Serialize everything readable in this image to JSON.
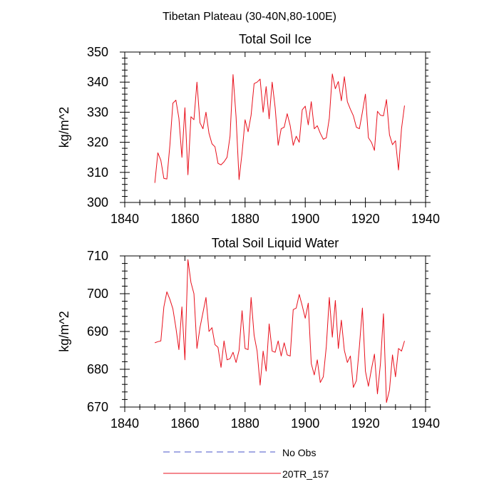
{
  "figure_title": "Tibetan Plateau (30-40N,80-100E)",
  "legend": {
    "entries": [
      {
        "label": "No Obs",
        "color": "#4a55c8",
        "style": "dashed"
      },
      {
        "label": "20TR_157",
        "color": "#e8101c",
        "style": "solid"
      }
    ]
  },
  "chart_data": [
    {
      "type": "line",
      "title": "Total Soil Ice",
      "xlabel": "",
      "ylabel": "kg/m^2",
      "xlim": [
        1840,
        1940
      ],
      "ylim": [
        300,
        350
      ],
      "xticks": [
        1840,
        1860,
        1880,
        1900,
        1920,
        1940
      ],
      "yticks": [
        300,
        310,
        320,
        330,
        340,
        350
      ],
      "grid": false,
      "series": [
        {
          "name": "20TR_157",
          "color": "#e8101c",
          "x": [
            1850,
            1851,
            1852,
            1853,
            1854,
            1855,
            1856,
            1857,
            1858,
            1859,
            1860,
            1861,
            1862,
            1863,
            1864,
            1865,
            1866,
            1867,
            1868,
            1869,
            1870,
            1871,
            1872,
            1873,
            1874,
            1875,
            1876,
            1877,
            1878,
            1879,
            1880,
            1881,
            1882,
            1883,
            1884,
            1885,
            1886,
            1887,
            1888,
            1889,
            1890,
            1891,
            1892,
            1893,
            1894,
            1895,
            1896,
            1897,
            1898,
            1899,
            1900,
            1901,
            1902,
            1903,
            1904,
            1905,
            1906,
            1907,
            1908,
            1909,
            1910,
            1911,
            1912,
            1913,
            1914,
            1915,
            1916,
            1917,
            1918,
            1919,
            1920,
            1921,
            1922,
            1923,
            1924,
            1925,
            1926,
            1927,
            1928,
            1929,
            1930,
            1931,
            1932,
            1933
          ],
          "values": [
            306.5,
            316.5,
            314,
            308,
            307.8,
            319,
            333,
            334,
            328,
            315,
            331.5,
            309.2,
            328.5,
            327.5,
            340,
            326.5,
            324.5,
            330,
            323,
            319.5,
            318.5,
            313,
            312.5,
            313.5,
            315,
            322,
            342.5,
            328.5,
            307.6,
            316.5,
            327.5,
            323.5,
            329,
            339.5,
            340,
            341,
            330,
            338.5,
            327.8,
            340,
            331.5,
            319,
            324.5,
            325,
            329.5,
            325.5,
            319,
            322,
            320,
            330.8,
            332,
            325.8,
            333.5,
            324.5,
            325.5,
            323,
            321,
            321.5,
            328,
            342.7,
            337.8,
            340.2,
            333.8,
            341.8,
            333.5,
            331,
            328.8,
            325,
            324.5,
            330,
            336,
            321.5,
            320,
            317.3,
            330.3,
            329,
            328.8,
            334.2,
            322.5,
            319.2,
            320.5,
            310.8,
            324.5,
            332.2
          ]
        }
      ]
    },
    {
      "type": "line",
      "title": "Total Soil Liquid Water",
      "xlabel": "",
      "ylabel": "kg/m^2",
      "xlim": [
        1840,
        1940
      ],
      "ylim": [
        670,
        710
      ],
      "xticks": [
        1840,
        1860,
        1880,
        1900,
        1920,
        1940
      ],
      "yticks": [
        670,
        680,
        690,
        700,
        710
      ],
      "grid": false,
      "series": [
        {
          "name": "20TR_157",
          "color": "#e8101c",
          "x": [
            1850,
            1851,
            1852,
            1853,
            1854,
            1855,
            1856,
            1857,
            1858,
            1859,
            1860,
            1861,
            1862,
            1863,
            1864,
            1865,
            1866,
            1867,
            1868,
            1869,
            1870,
            1871,
            1872,
            1873,
            1874,
            1875,
            1876,
            1877,
            1878,
            1879,
            1880,
            1881,
            1882,
            1883,
            1884,
            1885,
            1886,
            1887,
            1888,
            1889,
            1890,
            1891,
            1892,
            1893,
            1894,
            1895,
            1896,
            1897,
            1898,
            1899,
            1900,
            1901,
            1902,
            1903,
            1904,
            1905,
            1906,
            1907,
            1908,
            1909,
            1910,
            1911,
            1912,
            1913,
            1914,
            1915,
            1916,
            1917,
            1918,
            1919,
            1920,
            1921,
            1922,
            1923,
            1924,
            1925,
            1926,
            1927,
            1928,
            1929,
            1930,
            1931,
            1932,
            1933
          ],
          "values": [
            687,
            687.3,
            687.5,
            696.5,
            700.5,
            698.5,
            696,
            691,
            685.2,
            696.5,
            682.5,
            709,
            703,
            700,
            685.5,
            691,
            695,
            699,
            690,
            691,
            686.5,
            685.8,
            680.5,
            687.5,
            682.5,
            682.8,
            684.5,
            681.8,
            685,
            695.5,
            685.5,
            685.2,
            699,
            689,
            684.8,
            675.8,
            684.8,
            679.5,
            692,
            684.8,
            684.5,
            687.5,
            683.5,
            687,
            683.8,
            683.5,
            695.8,
            696.2,
            699.8,
            696.8,
            693.5,
            697.5,
            681.5,
            678.5,
            682.5,
            676.5,
            678,
            686,
            699,
            688.5,
            698.2,
            685.5,
            693,
            685,
            681.8,
            683.5,
            675.2,
            677,
            686,
            696.2,
            679.5,
            675.5,
            680,
            684,
            673.5,
            681.5,
            694.7,
            671.2,
            674.5,
            683.8,
            678,
            685.5,
            684.8,
            687.5
          ]
        }
      ]
    }
  ]
}
